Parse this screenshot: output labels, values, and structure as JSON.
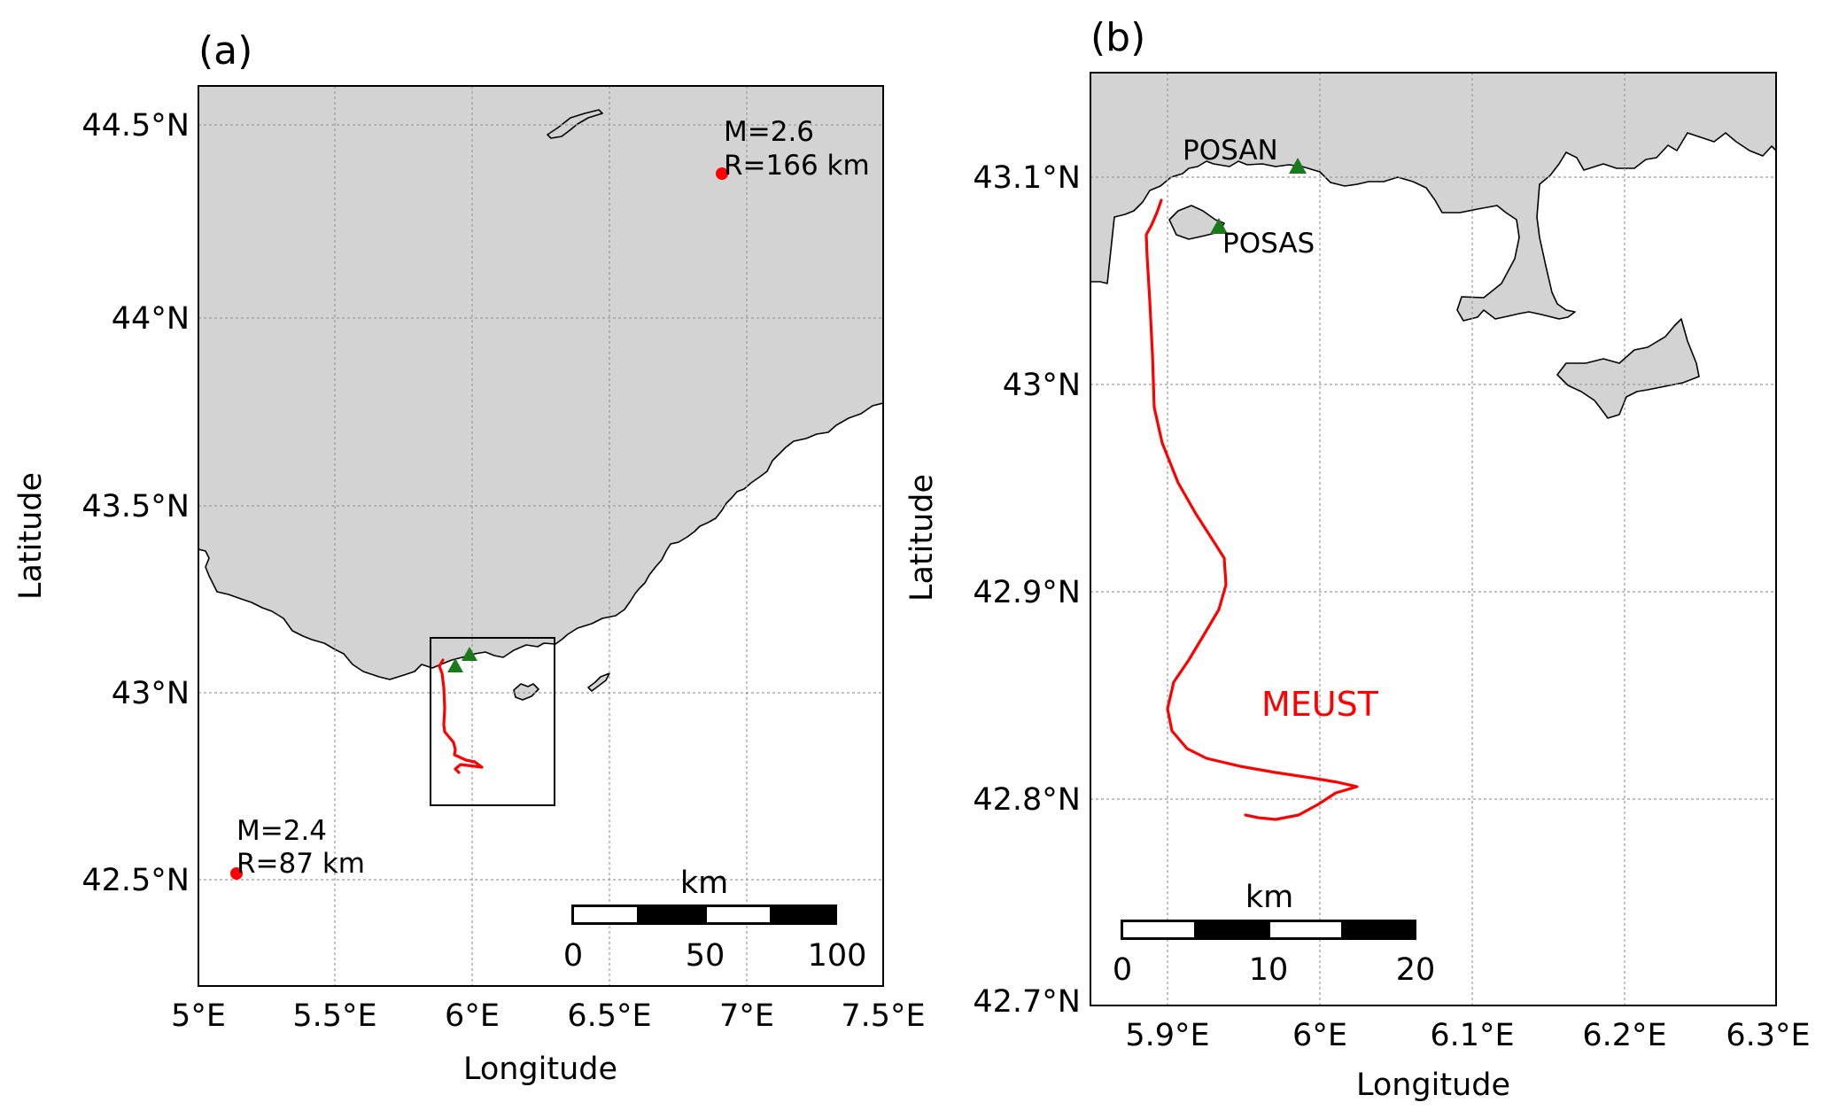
{
  "panel_a": {
    "label": "(a)",
    "xlabel": "Longitude",
    "ylabel": "Latitude",
    "xticks": [
      "5°E",
      "5.5°E",
      "6°E",
      "6.5°E",
      "7°E",
      "7.5°E"
    ],
    "yticks": [
      "44.5°N",
      "44°N",
      "43.5°N",
      "43°N",
      "42.5°N"
    ],
    "events": [
      {
        "magnitude": "M=2.6",
        "distance": "R=166 km",
        "lon": 6.91,
        "lat": 44.37
      },
      {
        "magnitude": "M=2.4",
        "distance": "R=87 km",
        "lon": 5.14,
        "lat": 42.51
      }
    ],
    "scalebar": {
      "unit": "km",
      "labels": [
        "0",
        "50",
        "100"
      ]
    }
  },
  "panel_b": {
    "label": "(b)",
    "xlabel": "Longitude",
    "ylabel": "Latitude",
    "xticks": [
      "5.9°E",
      "6°E",
      "6.1°E",
      "6.2°E",
      "6.3°E"
    ],
    "yticks": [
      "43.1°N",
      "43°N",
      "42.9°N",
      "42.8°N",
      "42.7°N"
    ],
    "stations": [
      {
        "name": "POSAN",
        "lon": 5.993,
        "lat": 43.105
      },
      {
        "name": "POSAS",
        "lon": 5.942,
        "lat": 43.076
      }
    ],
    "track_label": "MEUST",
    "scalebar": {
      "unit": "km",
      "labels": [
        "0",
        "10",
        "20"
      ]
    }
  },
  "colors": {
    "land": "#d3d3d3",
    "sea": "#ffffff",
    "track": "#ff0000",
    "event_marker": "#ff0000",
    "station_marker": "#1a7a1a"
  }
}
